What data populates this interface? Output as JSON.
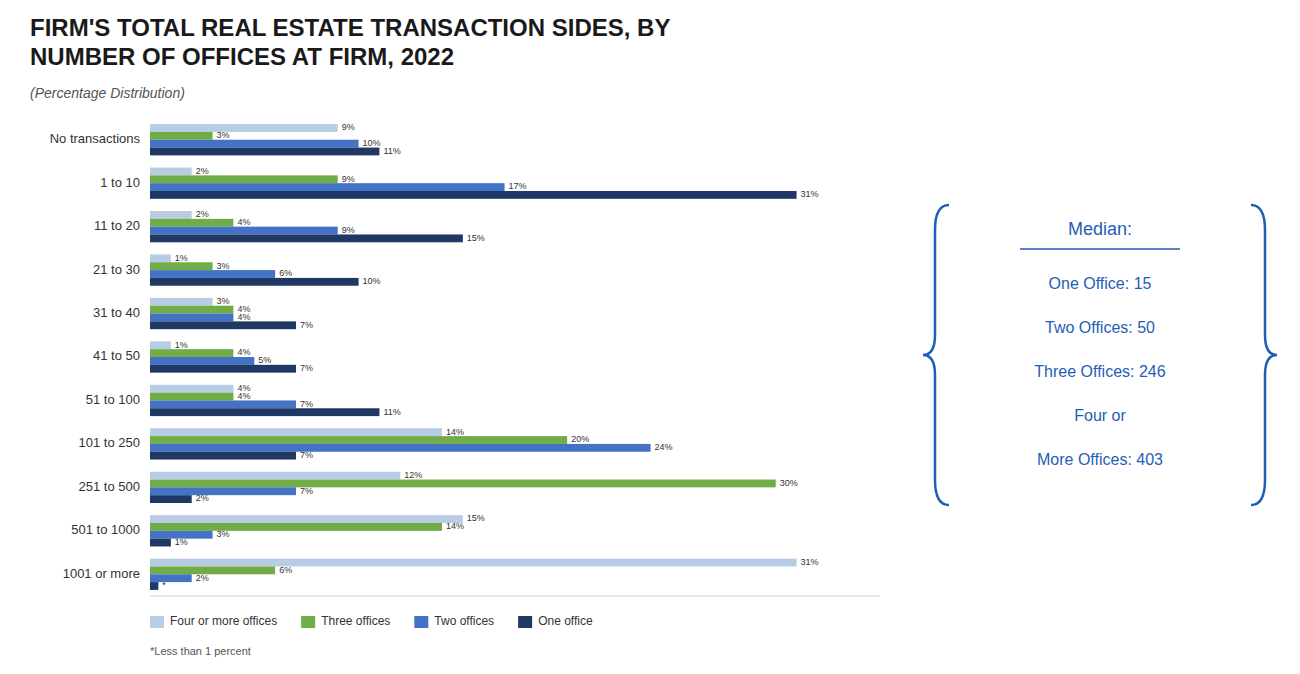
{
  "chart_data": {
    "type": "bar",
    "orientation": "horizontal",
    "title": "FIRM'S TOTAL REAL ESTATE TRANSACTION SIDES, BY\nNUMBER OF OFFICES AT FIRM, 2022",
    "subtitle": "(Percentage Distribution)",
    "categories": [
      "No transactions",
      "1 to 10",
      "11 to 20",
      "21 to 30",
      "31 to 40",
      "41 to 50",
      "51 to 100",
      "101 to 250",
      "251 to 500",
      "501 to 1000",
      "1001 or more"
    ],
    "series": [
      {
        "name": "Four or more offices",
        "color": "#b8cce4",
        "values": [
          9,
          2,
          2,
          1,
          3,
          1,
          4,
          14,
          12,
          15,
          31
        ],
        "value_labels": [
          "9%",
          "2%",
          "2%",
          "1%",
          "3%",
          "1%",
          "4%",
          "14%",
          "12%",
          "15%",
          "31%"
        ]
      },
      {
        "name": "Three offices",
        "color": "#70ad47",
        "values": [
          3,
          9,
          4,
          3,
          4,
          4,
          4,
          20,
          30,
          14,
          6
        ],
        "value_labels": [
          "3%",
          "9%",
          "4%",
          "3%",
          "4%",
          "4%",
          "4%",
          "20%",
          "30%",
          "14%",
          "6%"
        ]
      },
      {
        "name": "Two offices",
        "color": "#4472c4",
        "values": [
          10,
          17,
          9,
          6,
          4,
          5,
          7,
          24,
          7,
          3,
          2
        ],
        "value_labels": [
          "10%",
          "17%",
          "9%",
          "6%",
          "4%",
          "5%",
          "7%",
          "24%",
          "7%",
          "3%",
          "2%"
        ]
      },
      {
        "name": "One office",
        "color": "#1f3864",
        "values": [
          11,
          31,
          15,
          10,
          7,
          7,
          11,
          7,
          2,
          1,
          0.4
        ],
        "value_labels": [
          "11%",
          "31%",
          "15%",
          "10%",
          "7%",
          "7%",
          "11%",
          "7%",
          "2%",
          "1%",
          "*"
        ]
      }
    ],
    "xlim": [
      0,
      35
    ],
    "tick_labels": "y",
    "grid": false,
    "data_labels": true,
    "legend": "bottom",
    "footnote": "*Less than 1 percent",
    "median": {
      "title": "Median:",
      "lines": [
        "One Office: 15",
        "Two Offices: 50",
        "Three Offices: 246",
        "Four or",
        "More Offices: 403"
      ],
      "color": "#1f5eb5"
    }
  }
}
